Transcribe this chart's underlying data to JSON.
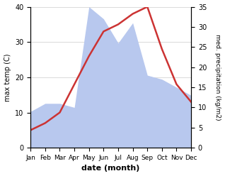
{
  "months": [
    "Jan",
    "Feb",
    "Mar",
    "Apr",
    "May",
    "Jun",
    "Jul",
    "Aug",
    "Sep",
    "Oct",
    "Nov",
    "Dec"
  ],
  "temperature": [
    5,
    7,
    10,
    18,
    26,
    33,
    35,
    38,
    40,
    28,
    18,
    13
  ],
  "precipitation": [
    9,
    11,
    11,
    10,
    35,
    32,
    26,
    31,
    18,
    17,
    15,
    13
  ],
  "temp_ylim": [
    0,
    40
  ],
  "precip_ylim": [
    0,
    35
  ],
  "temp_color": "#cc3333",
  "precip_fill_color": "#b8c8ee",
  "ylabel_left": "max temp (C)",
  "ylabel_right": "med. precipitation (kg/m2)",
  "xlabel": "date (month)",
  "temp_linewidth": 1.8,
  "yticks_left": [
    0,
    10,
    20,
    30,
    40
  ],
  "yticks_right": [
    0,
    5,
    10,
    15,
    20,
    25,
    30,
    35
  ],
  "grid_color": "#cccccc"
}
